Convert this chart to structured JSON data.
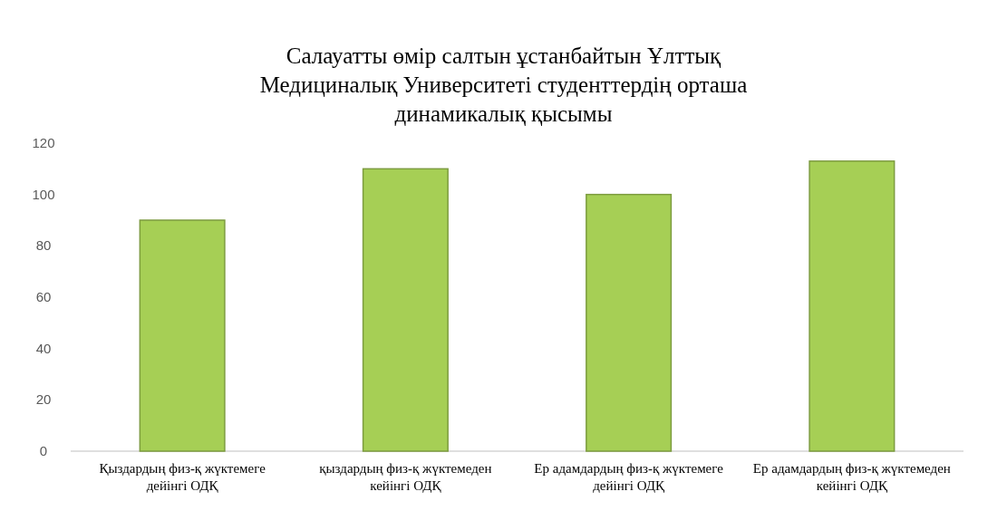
{
  "chart_data": {
    "type": "bar",
    "title": "Салауатты өмір салтын ұстанбайтын Ұлттық Медициналық Университеті студенттердің орташа динамикалық қысымы",
    "categories": [
      "Қыздардың физ-қ жүктемеге дейінгі ОДҚ",
      "қыздардың физ-қ жүктемеден кейінгі ОДҚ",
      "Ер адамдардың физ-қ жүктемеге дейінгі ОДҚ",
      "Ер адамдардың физ-қ жүктемеден кейінгі ОДҚ"
    ],
    "values": [
      90,
      110,
      100,
      113
    ],
    "color": "#a6cf55",
    "ylim": [
      0,
      120
    ],
    "yticks": [
      0,
      20,
      40,
      60,
      80,
      100,
      120
    ],
    "grid": false
  }
}
